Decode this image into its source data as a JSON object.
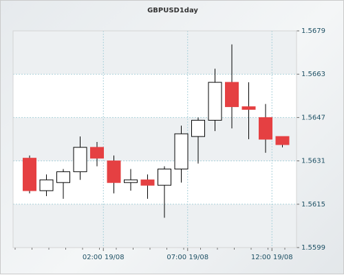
{
  "chart_data": {
    "type": "candlestick",
    "title": "GBPUSD1day",
    "y_ticks": [
      "1.5679",
      "1.5663",
      "1.5647",
      "1.5631",
      "1.5615",
      "1.5599"
    ],
    "x_ticks": [
      {
        "label": "02:00 19/08",
        "index": 4.5
      },
      {
        "label": "07:00 19/08",
        "index": 9.5
      },
      {
        "label": "12:00 19/08",
        "index": 14.5
      }
    ],
    "ylim": [
      1.5599,
      1.5679
    ],
    "grid": true,
    "candles": [
      {
        "open": 1.5632,
        "high": 1.5633,
        "low": 1.5619,
        "close": 1.562
      },
      {
        "open": 1.562,
        "high": 1.5626,
        "low": 1.5618,
        "close": 1.5624
      },
      {
        "open": 1.5623,
        "high": 1.5628,
        "low": 1.5617,
        "close": 1.5627
      },
      {
        "open": 1.5627,
        "high": 1.564,
        "low": 1.5624,
        "close": 1.5636
      },
      {
        "open": 1.5636,
        "high": 1.5638,
        "low": 1.5629,
        "close": 1.5632
      },
      {
        "open": 1.5631,
        "high": 1.5633,
        "low": 1.5619,
        "close": 1.5623
      },
      {
        "open": 1.5623,
        "high": 1.5628,
        "low": 1.562,
        "close": 1.5624
      },
      {
        "open": 1.5624,
        "high": 1.5626,
        "low": 1.5617,
        "close": 1.5622
      },
      {
        "open": 1.5622,
        "high": 1.5629,
        "low": 1.561,
        "close": 1.5628
      },
      {
        "open": 1.5628,
        "high": 1.5644,
        "low": 1.5623,
        "close": 1.5641
      },
      {
        "open": 1.564,
        "high": 1.5647,
        "low": 1.563,
        "close": 1.5646
      },
      {
        "open": 1.5646,
        "high": 1.5665,
        "low": 1.5642,
        "close": 1.566
      },
      {
        "open": 1.566,
        "high": 1.5674,
        "low": 1.5643,
        "close": 1.5651
      },
      {
        "open": 1.5651,
        "high": 1.566,
        "low": 1.5639,
        "close": 1.565
      },
      {
        "open": 1.5647,
        "high": 1.5652,
        "low": 1.5634,
        "close": 1.5639
      },
      {
        "open": 1.564,
        "high": 1.564,
        "low": 1.5636,
        "close": 1.5637
      }
    ],
    "colors": {
      "up_fill": "#ffffff",
      "up_stroke": "#000000",
      "down_fill": "#e54042",
      "wick": "#000000",
      "grid": "#a8cfd9",
      "axis": "#666666",
      "band": "#edf0f2",
      "plot_bg": "#ffffff"
    }
  }
}
